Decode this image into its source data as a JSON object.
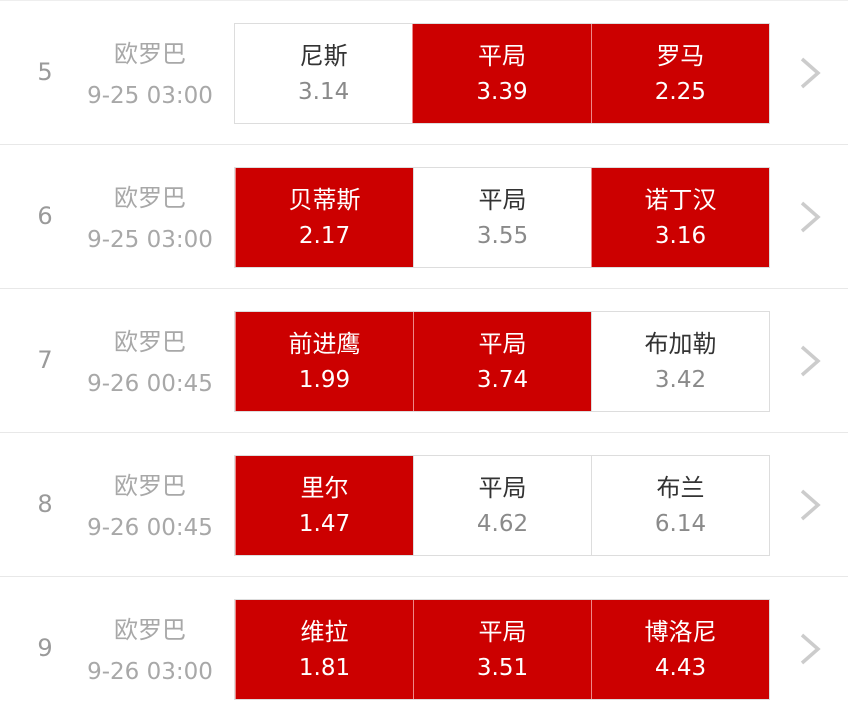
{
  "colors": {
    "selected": "#cc0000",
    "arrow": "#cccccc"
  },
  "matches": [
    {
      "index": "5",
      "league": "欧罗巴",
      "time": "9-25 03:00",
      "options": [
        {
          "name": "尼斯",
          "odds": "3.14",
          "selected": false
        },
        {
          "name": "平局",
          "odds": "3.39",
          "selected": true
        },
        {
          "name": "罗马",
          "odds": "2.25",
          "selected": true
        }
      ]
    },
    {
      "index": "6",
      "league": "欧罗巴",
      "time": "9-25 03:00",
      "options": [
        {
          "name": "贝蒂斯",
          "odds": "2.17",
          "selected": true
        },
        {
          "name": "平局",
          "odds": "3.55",
          "selected": false
        },
        {
          "name": "诺丁汉",
          "odds": "3.16",
          "selected": true
        }
      ]
    },
    {
      "index": "7",
      "league": "欧罗巴",
      "time": "9-26 00:45",
      "options": [
        {
          "name": "前进鹰",
          "odds": "1.99",
          "selected": true
        },
        {
          "name": "平局",
          "odds": "3.74",
          "selected": true
        },
        {
          "name": "布加勒",
          "odds": "3.42",
          "selected": false
        }
      ]
    },
    {
      "index": "8",
      "league": "欧罗巴",
      "time": "9-26 00:45",
      "options": [
        {
          "name": "里尔",
          "odds": "1.47",
          "selected": true
        },
        {
          "name": "平局",
          "odds": "4.62",
          "selected": false
        },
        {
          "name": "布兰",
          "odds": "6.14",
          "selected": false
        }
      ]
    },
    {
      "index": "9",
      "league": "欧罗巴",
      "time": "9-26 03:00",
      "options": [
        {
          "name": "维拉",
          "odds": "1.81",
          "selected": true
        },
        {
          "name": "平局",
          "odds": "3.51",
          "selected": true
        },
        {
          "name": "博洛尼",
          "odds": "4.43",
          "selected": true
        }
      ]
    }
  ]
}
